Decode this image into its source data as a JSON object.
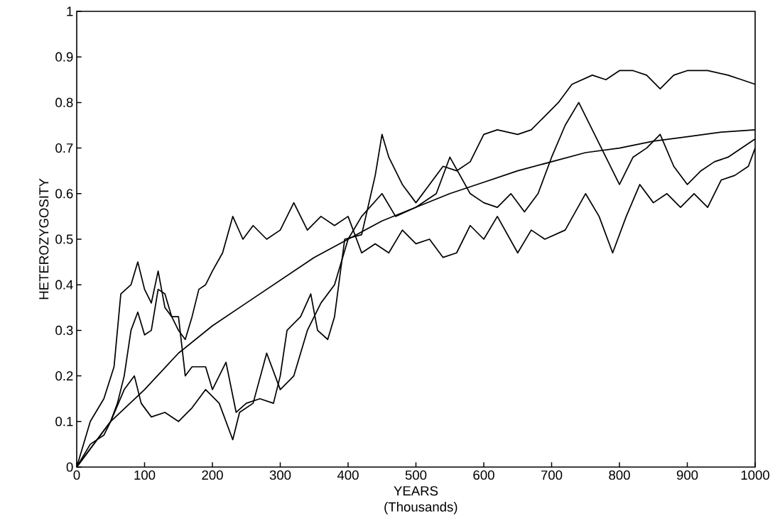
{
  "chart_data": {
    "type": "line",
    "xlabel": "YEARS (Thousands)",
    "ylabel": "HETEROZYGOSITY",
    "xlim": [
      0,
      1000
    ],
    "ylim": [
      0,
      1
    ],
    "xticks": [
      0,
      100,
      200,
      300,
      400,
      500,
      600,
      700,
      800,
      900,
      1000
    ],
    "yticks": [
      0,
      0.1,
      0.2,
      0.3,
      0.4,
      0.5,
      0.6,
      0.7,
      0.8,
      0.9,
      1
    ],
    "grid": false,
    "marker": "none",
    "line_style": "solid",
    "series": [
      {
        "color": "#000000",
        "x": [
          0,
          20,
          40,
          55,
          65,
          80,
          90,
          100,
          110,
          120,
          130,
          140,
          150,
          160,
          170,
          180,
          190,
          200,
          215,
          230,
          245,
          260,
          280,
          300,
          320,
          340,
          360,
          380,
          400,
          420,
          440,
          460,
          480,
          500,
          520,
          540,
          560,
          580,
          600,
          620,
          650,
          670,
          690,
          720,
          750,
          770,
          790,
          810,
          830,
          850,
          870,
          890,
          910,
          930,
          950,
          970,
          990,
          1000
        ],
        "values": [
          0,
          0.1,
          0.15,
          0.22,
          0.38,
          0.4,
          0.45,
          0.39,
          0.36,
          0.43,
          0.35,
          0.33,
          0.3,
          0.28,
          0.33,
          0.39,
          0.4,
          0.43,
          0.47,
          0.55,
          0.5,
          0.53,
          0.5,
          0.52,
          0.58,
          0.52,
          0.55,
          0.53,
          0.55,
          0.47,
          0.49,
          0.47,
          0.52,
          0.49,
          0.5,
          0.46,
          0.47,
          0.53,
          0.5,
          0.55,
          0.47,
          0.52,
          0.5,
          0.52,
          0.6,
          0.55,
          0.47,
          0.55,
          0.62,
          0.58,
          0.6,
          0.57,
          0.6,
          0.57,
          0.63,
          0.64,
          0.66,
          0.7
        ]
      },
      {
        "color": "#000000",
        "x": [
          0,
          20,
          40,
          50,
          60,
          70,
          80,
          90,
          100,
          110,
          120,
          130,
          140,
          150,
          160,
          170,
          190,
          200,
          220,
          235,
          250,
          270,
          290,
          300,
          310,
          330,
          345,
          355,
          370,
          380,
          395,
          420,
          440,
          450,
          460,
          480,
          500,
          520,
          540,
          560,
          580,
          600,
          620,
          650,
          670,
          690,
          710,
          730,
          760,
          780,
          800,
          820,
          840,
          860,
          880,
          900,
          930,
          960,
          980,
          1000
        ],
        "values": [
          0,
          0.05,
          0.07,
          0.1,
          0.14,
          0.2,
          0.3,
          0.34,
          0.29,
          0.3,
          0.39,
          0.38,
          0.33,
          0.33,
          0.2,
          0.22,
          0.22,
          0.17,
          0.23,
          0.12,
          0.14,
          0.15,
          0.14,
          0.2,
          0.3,
          0.33,
          0.38,
          0.3,
          0.28,
          0.33,
          0.5,
          0.51,
          0.64,
          0.73,
          0.68,
          0.62,
          0.58,
          0.62,
          0.66,
          0.65,
          0.67,
          0.73,
          0.74,
          0.73,
          0.74,
          0.77,
          0.8,
          0.84,
          0.86,
          0.85,
          0.87,
          0.87,
          0.86,
          0.83,
          0.86,
          0.87,
          0.87,
          0.86,
          0.85,
          0.84
        ]
      },
      {
        "color": "#000000",
        "x": [
          0,
          30,
          50,
          70,
          85,
          95,
          110,
          130,
          150,
          170,
          190,
          210,
          230,
          240,
          260,
          280,
          300,
          320,
          340,
          360,
          380,
          400,
          420,
          450,
          470,
          500,
          530,
          550,
          580,
          600,
          620,
          640,
          660,
          680,
          700,
          720,
          740,
          760,
          780,
          800,
          820,
          840,
          860,
          880,
          900,
          920,
          940,
          960,
          980,
          1000
        ],
        "values": [
          0,
          0.06,
          0.1,
          0.17,
          0.2,
          0.14,
          0.11,
          0.12,
          0.1,
          0.13,
          0.17,
          0.14,
          0.06,
          0.12,
          0.14,
          0.25,
          0.17,
          0.2,
          0.3,
          0.36,
          0.4,
          0.5,
          0.55,
          0.6,
          0.55,
          0.57,
          0.6,
          0.68,
          0.6,
          0.58,
          0.57,
          0.6,
          0.56,
          0.6,
          0.68,
          0.75,
          0.8,
          0.74,
          0.68,
          0.62,
          0.68,
          0.7,
          0.73,
          0.66,
          0.62,
          0.65,
          0.67,
          0.68,
          0.7,
          0.72
        ]
      },
      {
        "color": "#000000",
        "x": [
          0,
          50,
          100,
          150,
          200,
          250,
          300,
          350,
          400,
          450,
          500,
          550,
          600,
          650,
          700,
          750,
          800,
          850,
          900,
          950,
          1000
        ],
        "values": [
          0,
          0.1,
          0.17,
          0.25,
          0.31,
          0.36,
          0.41,
          0.46,
          0.5,
          0.54,
          0.57,
          0.6,
          0.625,
          0.65,
          0.67,
          0.69,
          0.7,
          0.715,
          0.725,
          0.735,
          0.74
        ]
      }
    ]
  }
}
